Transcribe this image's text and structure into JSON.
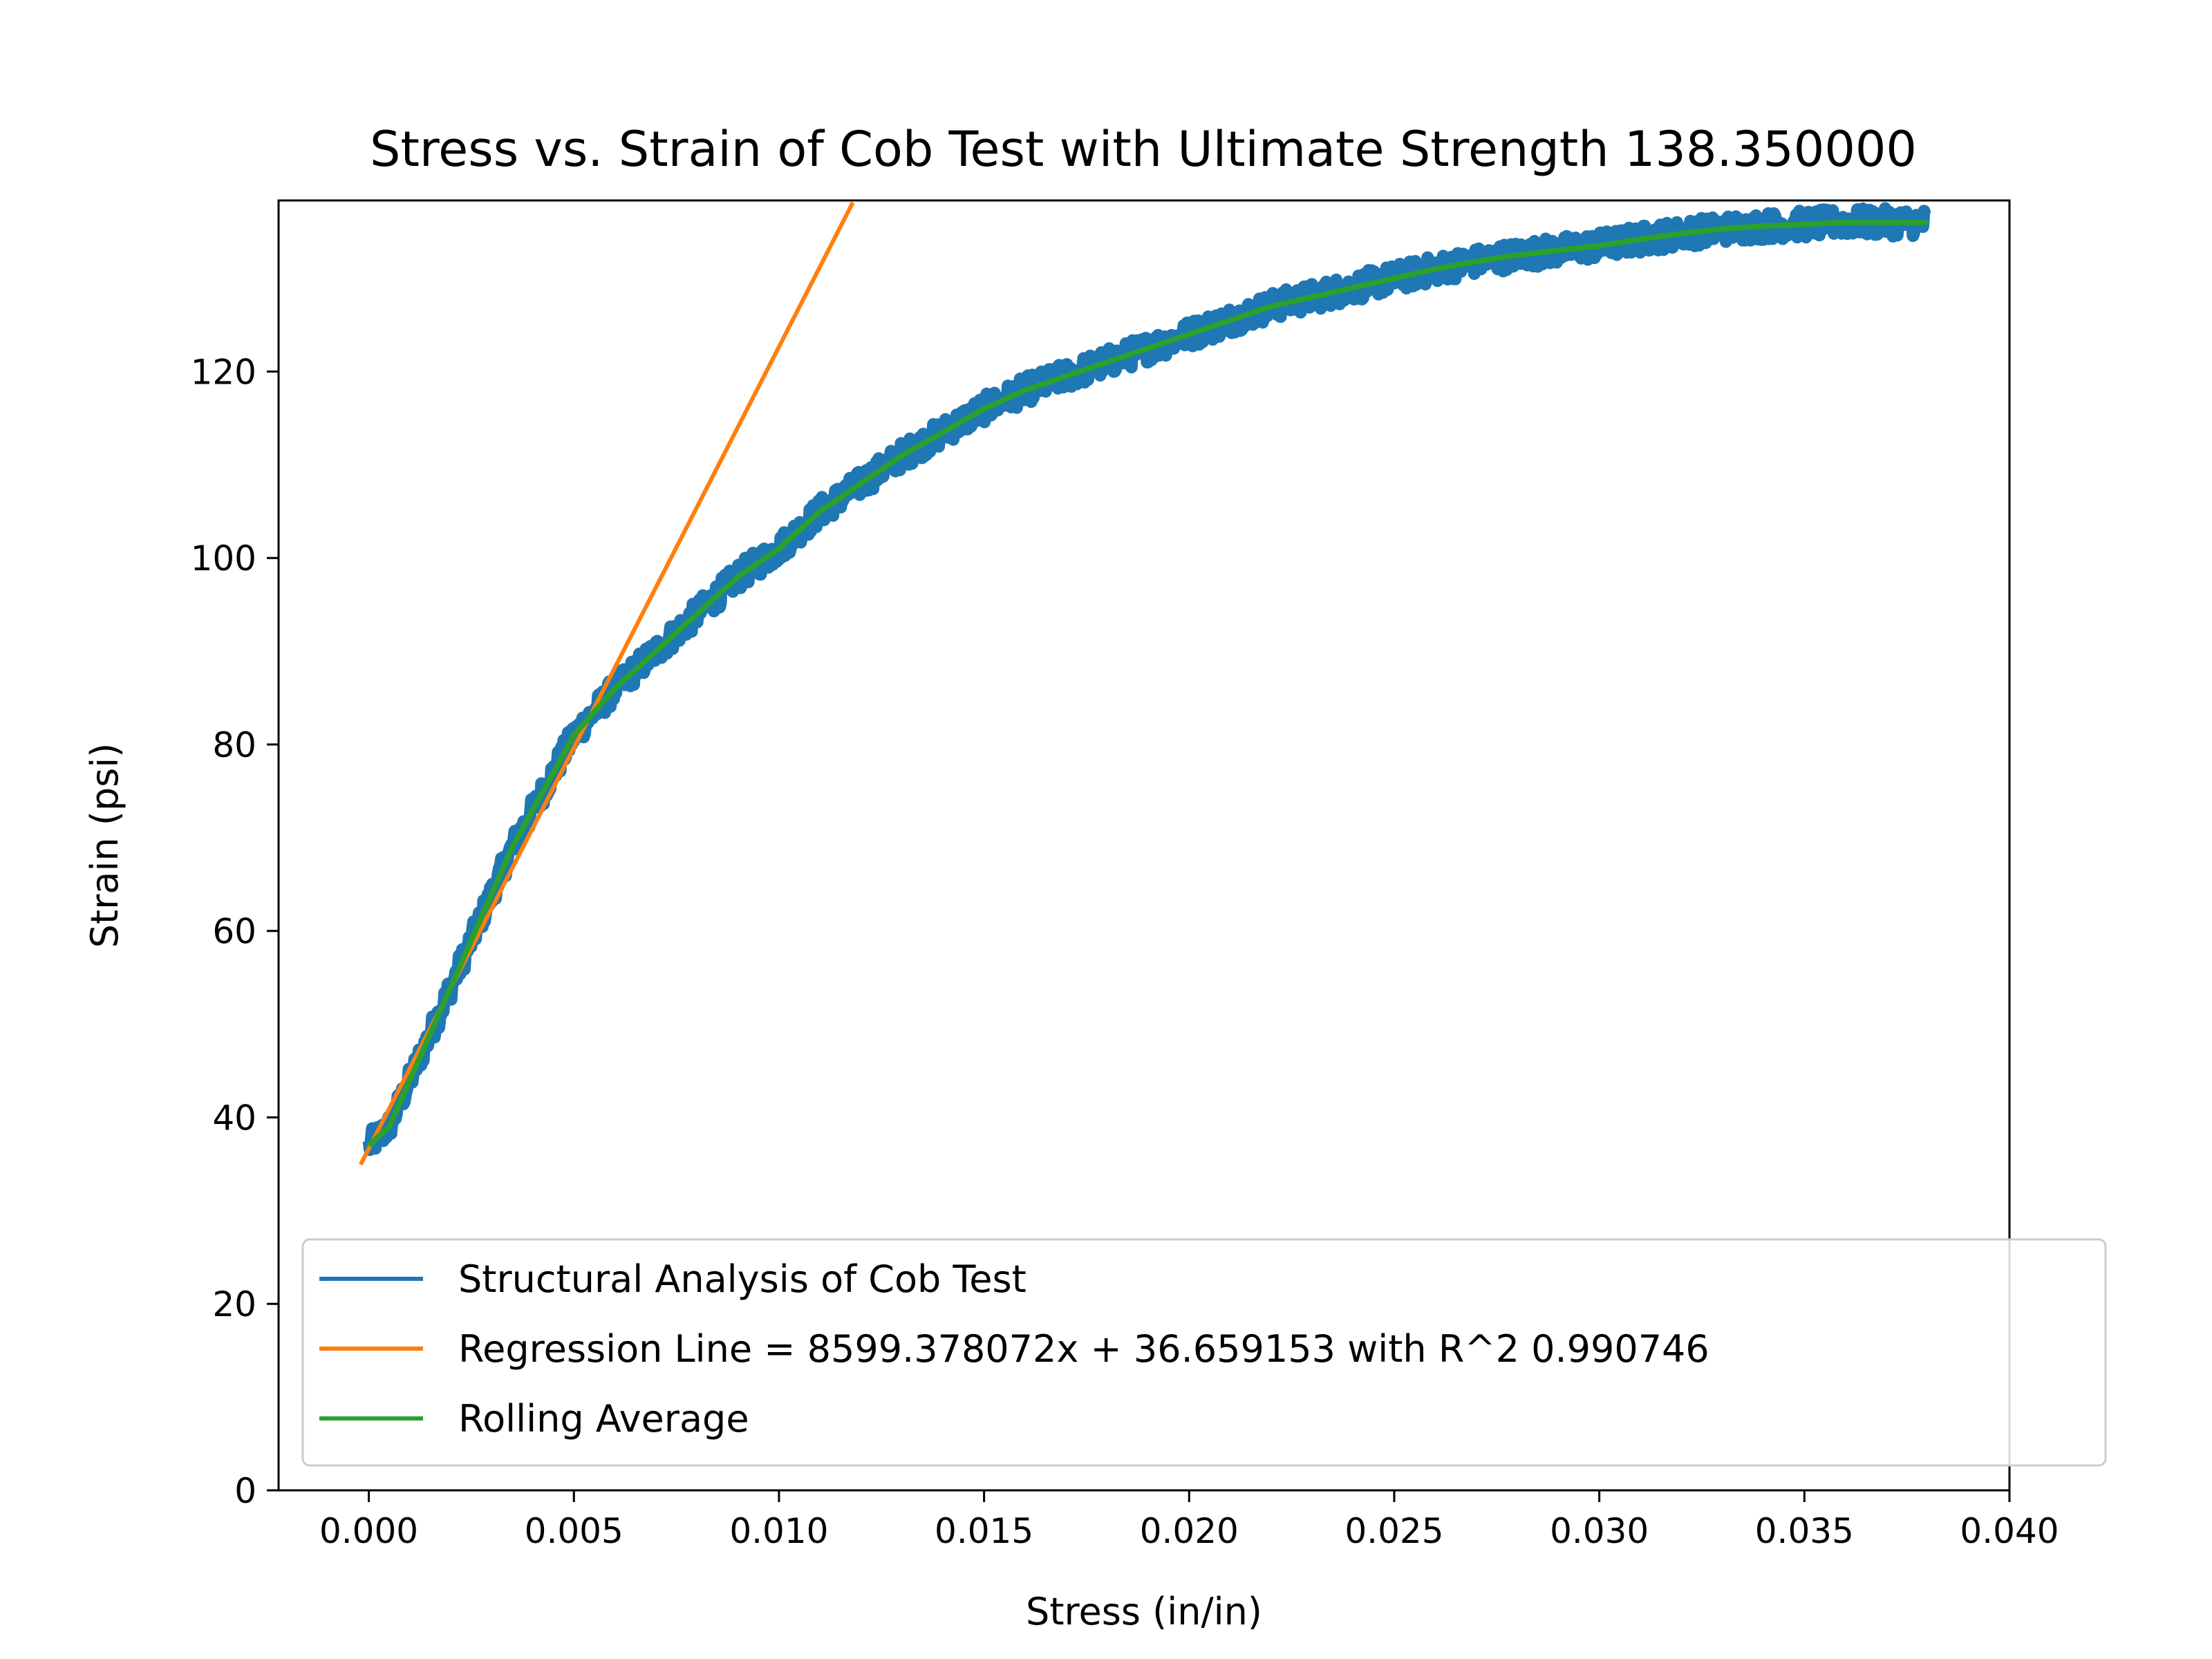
{
  "chart_data": {
    "type": "line",
    "title": "Stress vs. Strain of Cob Test with Ultimate Strength 138.350000",
    "xlabel": "Stress (in/in)",
    "ylabel": "Strain (psi)",
    "xlim": [
      -0.0022,
      0.04
    ],
    "ylim": [
      0,
      138.35
    ],
    "xticks": [
      "0.000",
      "0.005",
      "0.010",
      "0.015",
      "0.020",
      "0.025",
      "0.030",
      "0.035",
      "0.040"
    ],
    "yticks": [
      "0",
      "20",
      "40",
      "60",
      "80",
      "100",
      "120"
    ],
    "grid": false,
    "legend_position": "lower-right",
    "series": [
      {
        "name": "Structural Analysis of Cob Test",
        "color": "#1f77b4",
        "style": "noisy-band",
        "x": [
          0.0,
          0.0005,
          0.001,
          0.0015,
          0.002,
          0.0025,
          0.003,
          0.0035,
          0.004,
          0.0045,
          0.005,
          0.006,
          0.007,
          0.008,
          0.009,
          0.01,
          0.011,
          0.012,
          0.013,
          0.014,
          0.015,
          0.016,
          0.017,
          0.018,
          0.019,
          0.02,
          0.021,
          0.022,
          0.023,
          0.024,
          0.025,
          0.026,
          0.027,
          0.028,
          0.029,
          0.03,
          0.031,
          0.032,
          0.033,
          0.034,
          0.035,
          0.036,
          0.037,
          0.038
        ],
        "y": [
          37,
          39,
          44,
          49,
          54,
          59,
          64,
          69,
          73,
          77,
          81,
          86,
          90,
          94,
          98,
          101,
          105,
          108,
          111,
          113.5,
          116,
          118,
          119.5,
          121,
          122.5,
          124,
          125.5,
          127,
          128,
          129,
          130,
          131,
          131.8,
          132.5,
          133,
          133.5,
          134.2,
          134.8,
          135.3,
          135.6,
          135.8,
          136,
          136,
          136
        ],
        "noise": 1.5
      },
      {
        "name": "Regression Line = 8599.378072x + 36.659153 with R^2 0.990746",
        "color": "#ff7f0e",
        "style": "line",
        "x": [
          -0.0002,
          0.0118
        ],
        "y": [
          34.94,
          138.13
        ]
      },
      {
        "name": "Rolling Average",
        "color": "#2ca02c",
        "style": "thick-line",
        "x": [
          0.0,
          0.0005,
          0.001,
          0.0015,
          0.002,
          0.0025,
          0.003,
          0.0035,
          0.004,
          0.0045,
          0.005,
          0.006,
          0.007,
          0.008,
          0.009,
          0.01,
          0.011,
          0.012,
          0.013,
          0.014,
          0.015,
          0.016,
          0.017,
          0.018,
          0.019,
          0.02,
          0.021,
          0.022,
          0.023,
          0.024,
          0.025,
          0.026,
          0.027,
          0.028,
          0.029,
          0.03,
          0.031,
          0.032,
          0.033,
          0.034,
          0.035,
          0.036,
          0.037,
          0.038
        ],
        "y": [
          37,
          39,
          44,
          49,
          54,
          59,
          64,
          69,
          73,
          77,
          81,
          86,
          90,
          94,
          98,
          101,
          105,
          108,
          111,
          113.5,
          116,
          118,
          119.5,
          121,
          122.5,
          124,
          125.5,
          127,
          128,
          129,
          130,
          131,
          131.8,
          132.5,
          133,
          133.5,
          134.2,
          134.8,
          135.3,
          135.6,
          135.8,
          136,
          136,
          136
        ]
      }
    ]
  }
}
